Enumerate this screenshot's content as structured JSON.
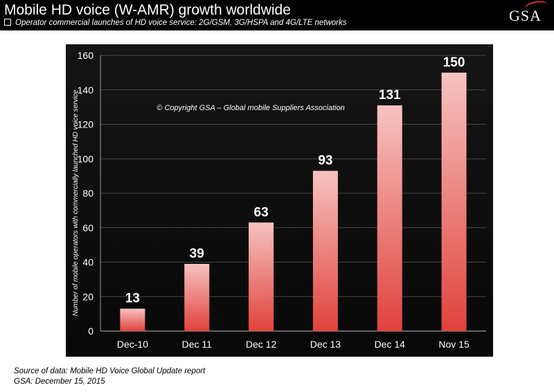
{
  "header": {
    "title": "Mobile HD voice (W-AMR) growth worldwide",
    "subtitle": "Operator commercial launches of HD voice service: 2G/GSM, 3G/HSPA and 4G/LTE networks",
    "logo": "GSA"
  },
  "chart_data": {
    "type": "bar",
    "title": "Mobile HD voice (W-AMR) growth worldwide",
    "xlabel": "",
    "ylabel": "Number of mobile operators with commercially launched HD voice service",
    "categories": [
      "Dec-10",
      "Dec 11",
      "Dec 12",
      "Dec 13",
      "Dec 14",
      "Nov 15"
    ],
    "values": [
      13,
      39,
      63,
      93,
      131,
      150
    ],
    "data_labels": [
      "13",
      "39",
      "63",
      "93",
      "131",
      "150"
    ],
    "ylim": [
      0,
      160
    ],
    "yticks": [
      0,
      20,
      40,
      60,
      80,
      100,
      120,
      140,
      160
    ],
    "ytick_labels": [
      "0",
      "20",
      "40",
      "60",
      "80",
      "100",
      "120",
      "140",
      "160"
    ],
    "grid": true,
    "annotation": "© Copyright GSA – Global mobile Suppliers Association"
  },
  "colors": {
    "header_bg": "#000000",
    "plot_bg": "#0e0e0e",
    "bar_top": "#f7c3c0",
    "bar_bottom": "#e0423c",
    "grid": "#5a5a5a",
    "label": "#ffffff"
  },
  "footer": {
    "source_line": "Source of data: Mobile HD Voice Global Update report",
    "date_line": "GSA: December 15, 2015"
  }
}
